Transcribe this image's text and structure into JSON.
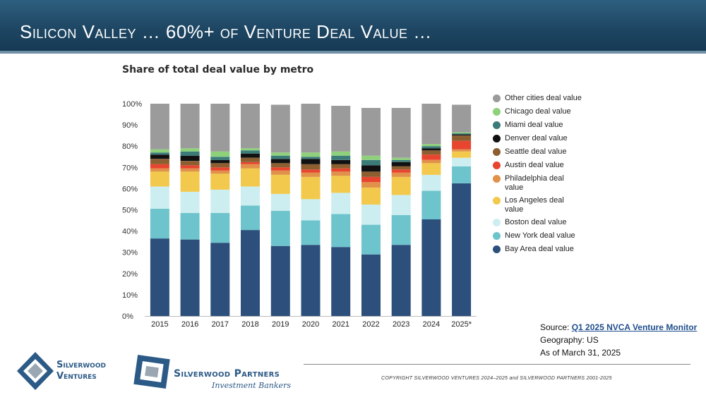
{
  "slide": {
    "title": "Silicon Valley … 60%+ of Venture Deal Value …",
    "chart_title": "Share of total deal value by metro",
    "source_label": "Source:",
    "source_link": "Q1 2025 NVCA Venture Monitor",
    "geography": "Geography: US",
    "as_of": "As of March 31, 2025",
    "copyright": "COPYRIGHT SILVERWOOD VENTURES 2024–2025 and SILVERWOOD PARTNERS 2001-2025",
    "logo1_line1": "Silverwood",
    "logo1_line2": "Ventures",
    "logo2_name": "Silverwood Partners",
    "logo2_sub": "Investment Bankers"
  },
  "colors": {
    "header": "#1e4764",
    "logo": "#2c5a86"
  },
  "chart_data": {
    "type": "bar",
    "stacked": true,
    "title": "Share of total deal value by metro",
    "xlabel": "",
    "ylabel": "",
    "ylim": [
      0,
      100
    ],
    "yticks": [
      "0%",
      "10%",
      "20%",
      "30%",
      "40%",
      "50%",
      "60%",
      "70%",
      "80%",
      "90%",
      "100%"
    ],
    "categories": [
      "2015",
      "2016",
      "2017",
      "2018",
      "2019",
      "2020",
      "2021",
      "2022",
      "2023",
      "2024",
      "2025*"
    ],
    "series": [
      {
        "name": "Bay Area deal value",
        "color": "#2c4f7c",
        "values": [
          36.5,
          36,
          34.5,
          40.5,
          33,
          33.5,
          32.5,
          29,
          33.5,
          45.5,
          62.5
        ]
      },
      {
        "name": "New York deal value",
        "color": "#6ec4cc",
        "values": [
          14,
          12.5,
          14,
          11.5,
          16.5,
          11.5,
          15.5,
          14,
          14,
          13.5,
          8
        ]
      },
      {
        "name": "Boston deal value",
        "color": "#cdeef0",
        "values": [
          10.5,
          10,
          11,
          9,
          8,
          10,
          10,
          9.5,
          9.5,
          7.5,
          4
        ]
      },
      {
        "name": "Los Angeles deal value",
        "color": "#f2c94c",
        "values": [
          7,
          9.5,
          7.5,
          8.5,
          9,
          10.5,
          8,
          8,
          8.5,
          5.5,
          3
        ]
      },
      {
        "name": "Philadelphia deal value",
        "color": "#e0914a",
        "values": [
          1.5,
          1.5,
          1.5,
          2,
          2,
          2,
          2,
          2.5,
          2,
          1.5,
          1
        ]
      },
      {
        "name": "Austin deal value",
        "color": "#e8452e",
        "values": [
          2,
          1.5,
          1.5,
          1,
          1.5,
          1.5,
          1.5,
          2.5,
          1.5,
          2.5,
          4
        ]
      },
      {
        "name": "Seattle deal value",
        "color": "#8c5e30",
        "values": [
          2.5,
          2,
          2,
          2,
          2,
          2.5,
          2,
          2.5,
          1.5,
          2,
          2.5
        ]
      },
      {
        "name": "Denver deal value",
        "color": "#111111",
        "values": [
          2,
          2.5,
          1.5,
          2,
          2,
          2.5,
          2,
          3,
          2,
          1,
          0.5
        ]
      },
      {
        "name": "Miami deal value",
        "color": "#3b7b78",
        "values": [
          1,
          2,
          1.5,
          1.5,
          1.5,
          1,
          2,
          2.5,
          1,
          1,
          0.5
        ]
      },
      {
        "name": "Chicago deal value",
        "color": "#8fd17a",
        "values": [
          1.5,
          1.5,
          2.5,
          1,
          1.5,
          2,
          2,
          2,
          1,
          1,
          0.5
        ]
      },
      {
        "name": "Other cities deal value",
        "color": "#9b9b9b",
        "values": [
          21.5,
          21,
          22.5,
          21,
          22.5,
          23,
          21.5,
          22.5,
          23.5,
          19,
          13
        ]
      }
    ],
    "legend_order": [
      "Other cities deal value",
      "Chicago deal value",
      "Miami deal value",
      "Denver deal value",
      "Seattle deal value",
      "Austin deal value",
      "Philadelphia deal value",
      "Los Angeles deal value",
      "Boston deal value",
      "New York deal value",
      "Bay Area deal value"
    ],
    "legend_position": "right"
  }
}
